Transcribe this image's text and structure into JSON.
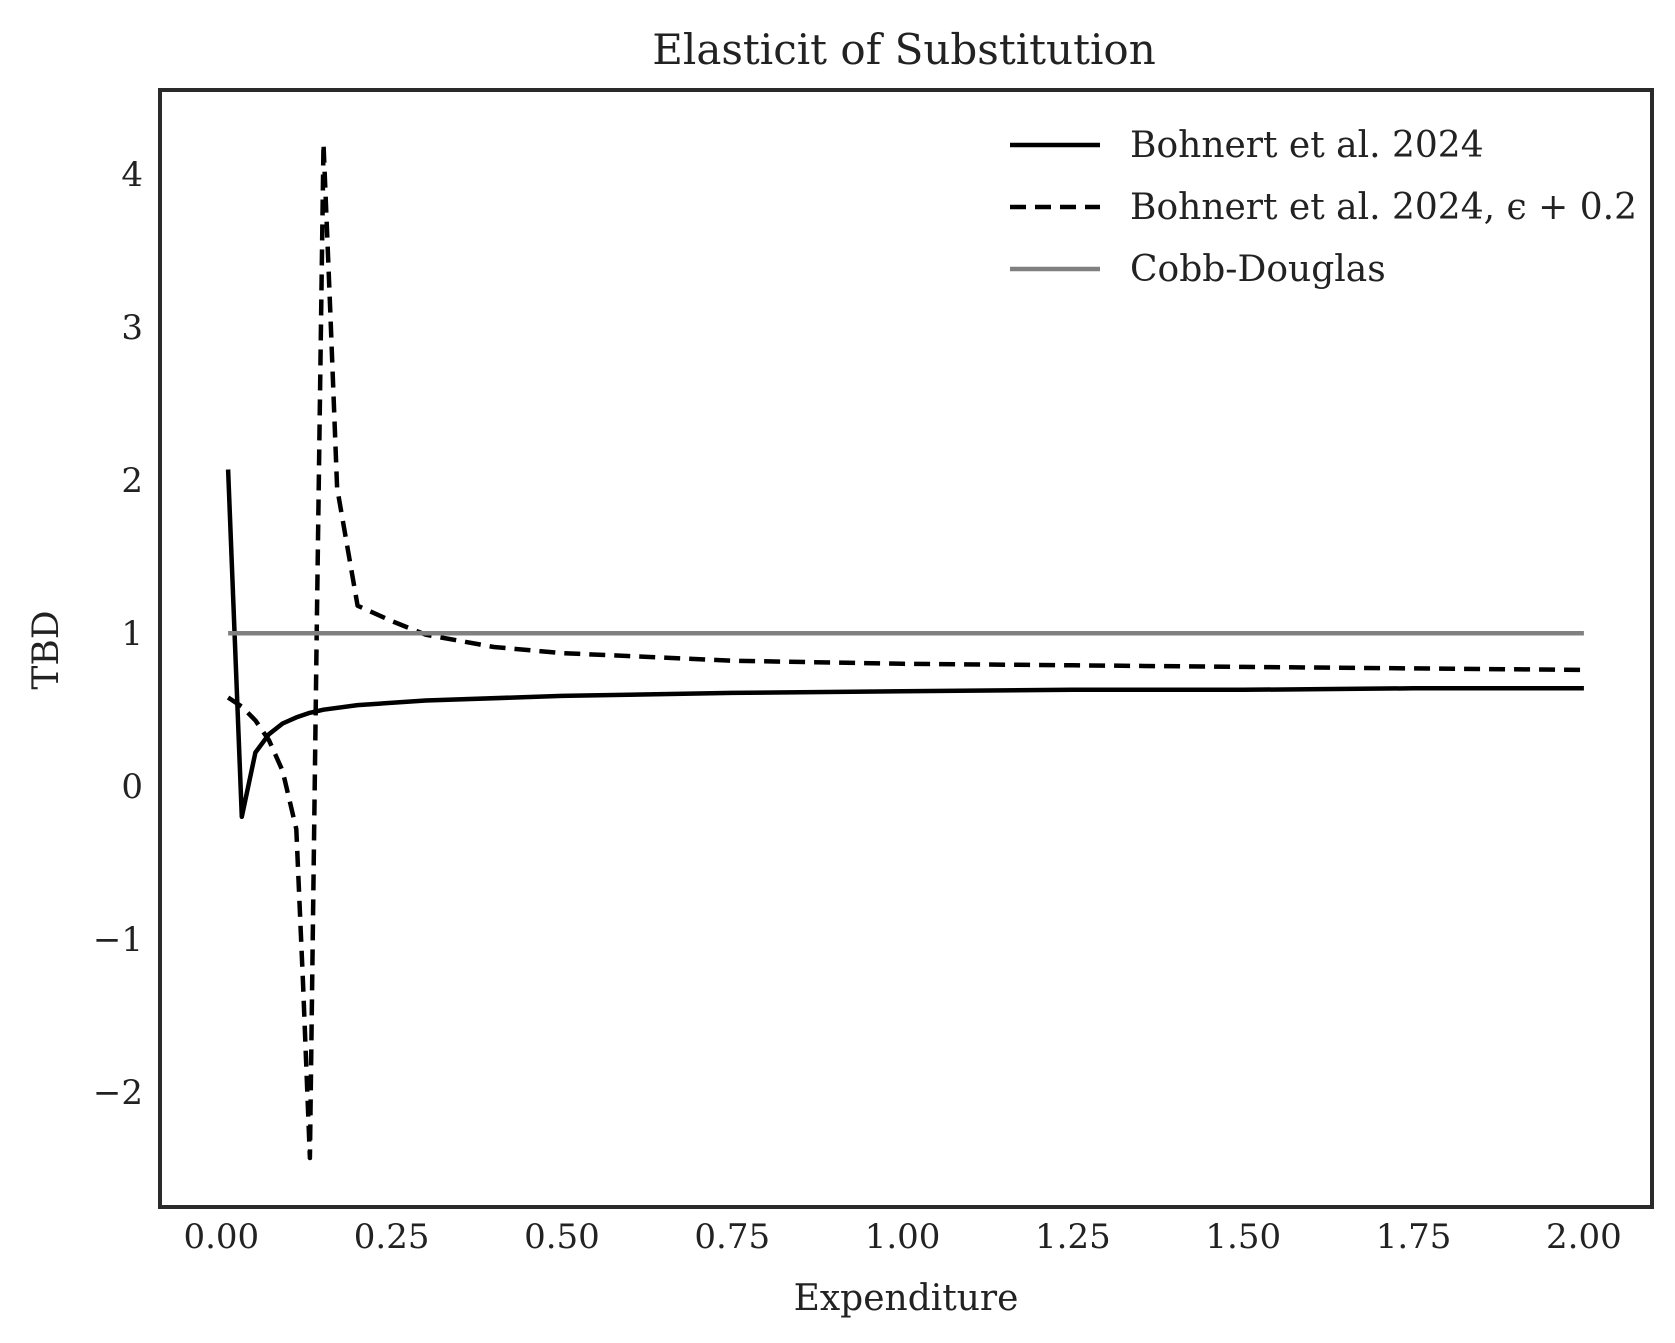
{
  "chart_data": {
    "type": "line",
    "title": "Elasticit of Substitution",
    "xlabel": "Expenditure",
    "ylabel": "TBD",
    "xlim": [
      -0.09,
      2.1
    ],
    "ylim": [
      -2.75,
      4.55
    ],
    "xticks": [
      0.0,
      0.25,
      0.5,
      0.75,
      1.0,
      1.25,
      1.5,
      1.75,
      2.0
    ],
    "xtick_labels": [
      "0.00",
      "0.25",
      "0.50",
      "0.75",
      "1.00",
      "1.25",
      "1.50",
      "1.75",
      "2.00"
    ],
    "yticks": [
      -2,
      -1,
      0,
      1,
      2,
      3,
      4
    ],
    "ytick_labels": [
      "−2",
      "−1",
      "0",
      "1",
      "2",
      "3",
      "4"
    ],
    "grid": false,
    "legend_position": "top-right",
    "series": [
      {
        "name": "Bohnert et al. 2024",
        "style": "solid",
        "color": "#000000",
        "x": [
          0.01,
          0.03,
          0.05,
          0.07,
          0.09,
          0.11,
          0.13,
          0.15,
          0.2,
          0.3,
          0.5,
          0.75,
          1.0,
          1.25,
          1.5,
          1.75,
          2.0
        ],
        "y": [
          2.07,
          -0.2,
          0.22,
          0.34,
          0.41,
          0.45,
          0.48,
          0.5,
          0.53,
          0.56,
          0.59,
          0.61,
          0.62,
          0.63,
          0.63,
          0.64,
          0.64
        ]
      },
      {
        "name": "Bohnert et al. 2024, ϵ + 0.2",
        "style": "dashed",
        "color": "#000000",
        "x": [
          0.01,
          0.03,
          0.05,
          0.07,
          0.09,
          0.11,
          0.12,
          0.13,
          0.14,
          0.15,
          0.16,
          0.17,
          0.2,
          0.25,
          0.3,
          0.4,
          0.5,
          0.75,
          1.0,
          1.25,
          1.5,
          1.75,
          2.0
        ],
        "y": [
          0.58,
          0.52,
          0.43,
          0.3,
          0.1,
          -0.28,
          -1.3,
          -2.43,
          1.0,
          4.2,
          3.1,
          1.95,
          1.18,
          1.08,
          0.99,
          0.91,
          0.87,
          0.82,
          0.8,
          0.79,
          0.78,
          0.77,
          0.76
        ]
      },
      {
        "name": "Cobb-Douglas",
        "style": "solid",
        "color": "#808080",
        "x": [
          0.01,
          2.0
        ],
        "y": [
          1.0,
          1.0
        ]
      }
    ]
  }
}
